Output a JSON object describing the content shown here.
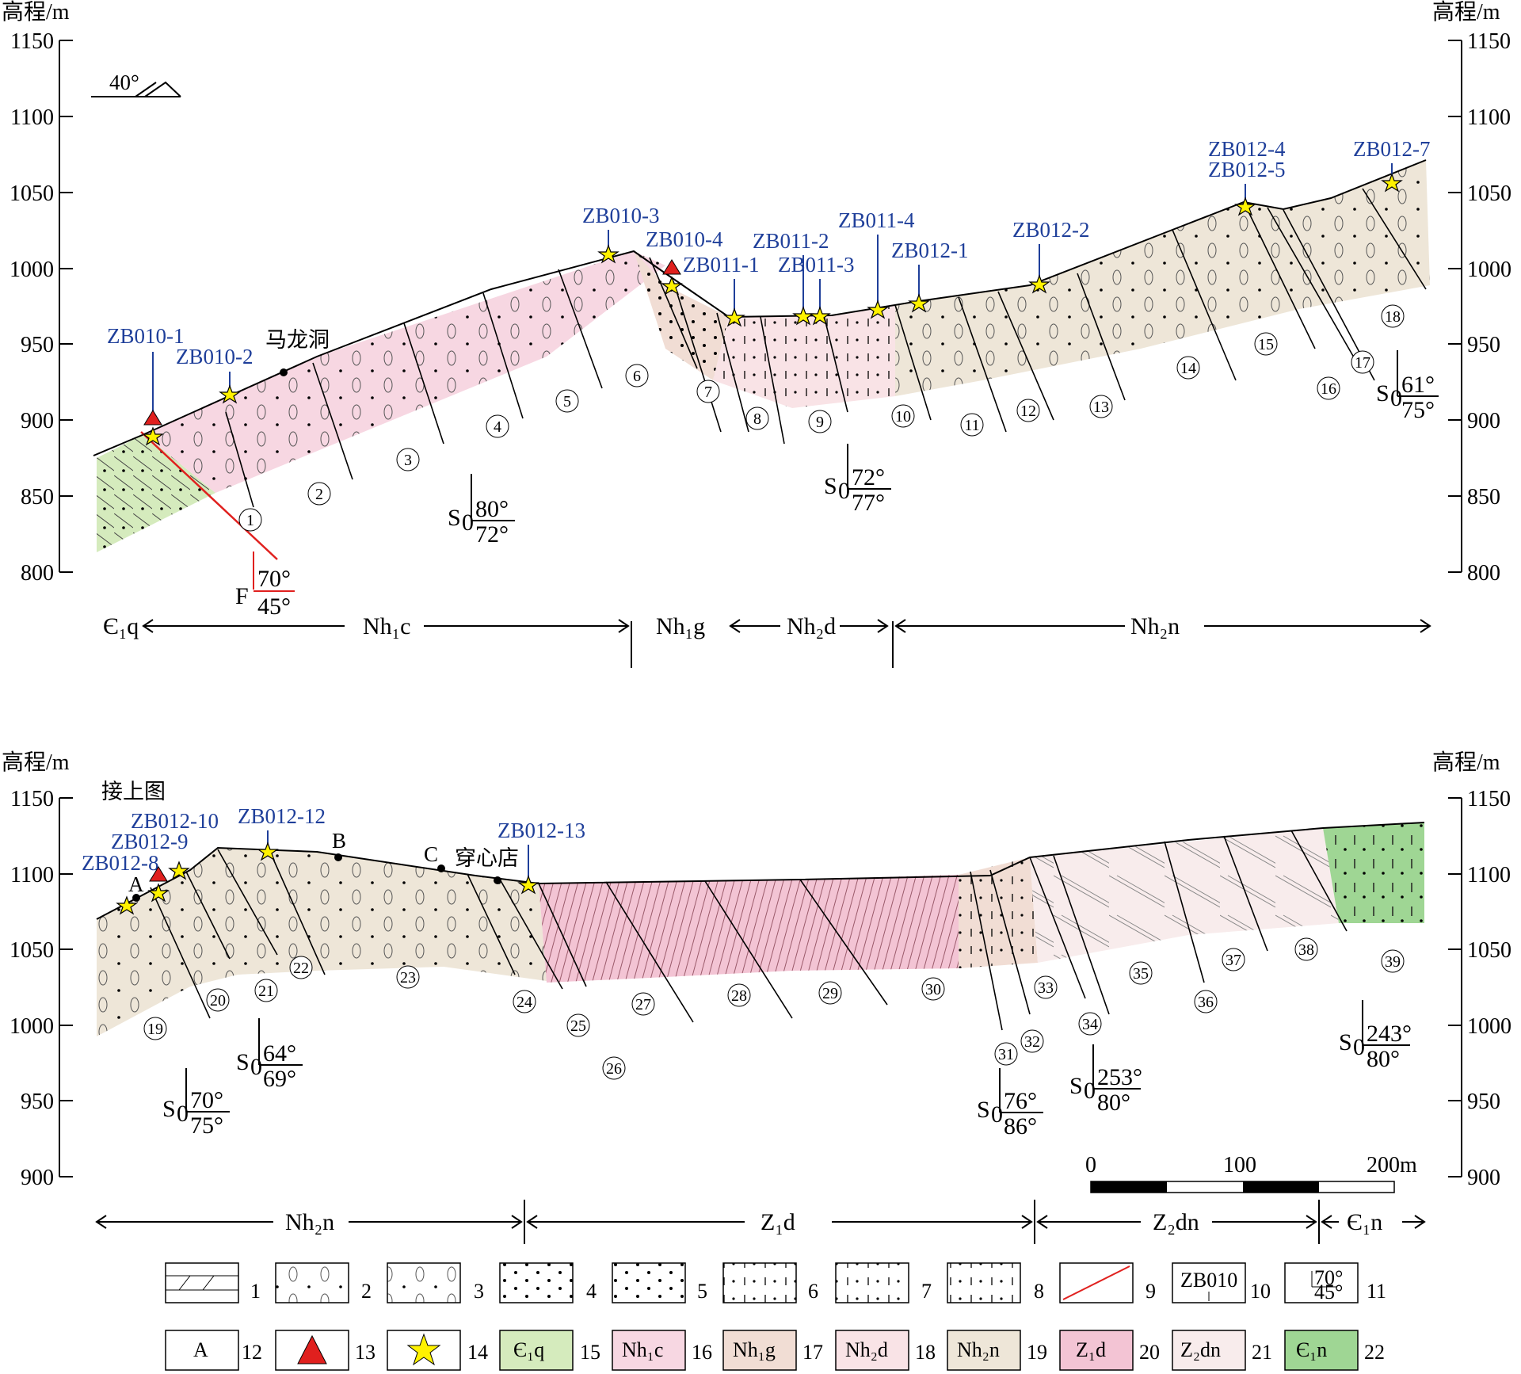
{
  "axis": {
    "title": "高程/m",
    "top_ticks": [
      "1150",
      "1100",
      "1050",
      "1000",
      "950",
      "900",
      "850",
      "800"
    ],
    "bottom_ticks": [
      "1150",
      "1100",
      "1050",
      "1000",
      "950",
      "900"
    ]
  },
  "dip_symbol": {
    "angle": "40°"
  },
  "top_section": {
    "place_label": "马龙洞",
    "samples": [
      "ZB010-1",
      "ZB010-2",
      "ZB010-3",
      "ZB010-4",
      "ZB011-1",
      "ZB011-2",
      "ZB011-3",
      "ZB011-4",
      "ZB012-1",
      "ZB012-2",
      "ZB012-4",
      "ZB012-5",
      "ZB012-7"
    ],
    "layers": [
      "1",
      "2",
      "3",
      "4",
      "5",
      "6",
      "7",
      "8",
      "9",
      "10",
      "11",
      "12",
      "13",
      "14",
      "15",
      "16",
      "17",
      "18"
    ],
    "attitudes": [
      {
        "sym": "S",
        "sub": "0",
        "a": "80°",
        "b": "72°"
      },
      {
        "sym": "S",
        "sub": "0",
        "a": "72°",
        "b": "77°"
      },
      {
        "sym": "S",
        "sub": "0",
        "a": "61°",
        "b": "75°"
      }
    ],
    "fault": {
      "sym": "F",
      "a": "70°",
      "b": "45°"
    },
    "formations": [
      "Є₁q",
      "Nh₁c",
      "Nh₁g",
      "Nh₂d",
      "Nh₂n"
    ]
  },
  "bottom_section": {
    "continue_label": "接上图",
    "place_label": "穿心店",
    "points": [
      "A",
      "B",
      "C"
    ],
    "samples": [
      "ZB012-8",
      "ZB012-9",
      "ZB012-10",
      "ZB012-12",
      "ZB012-13"
    ],
    "layers": [
      "19",
      "20",
      "21",
      "22",
      "23",
      "24",
      "25",
      "26",
      "27",
      "28",
      "29",
      "30",
      "31",
      "32",
      "33",
      "34",
      "35",
      "36",
      "37",
      "38",
      "39"
    ],
    "attitudes": [
      {
        "sym": "S",
        "sub": "0",
        "a": "70°",
        "b": "75°"
      },
      {
        "sym": "S",
        "sub": "0",
        "a": "64°",
        "b": "69°"
      },
      {
        "sym": "S",
        "sub": "0",
        "a": "76°",
        "b": "86°"
      },
      {
        "sym": "S",
        "sub": "0",
        "a": "253°",
        "b": "80°"
      },
      {
        "sym": "S",
        "sub": "0",
        "a": "243°",
        "b": "80°"
      }
    ],
    "formations": [
      "Nh₂n",
      "Z₁d",
      "Z₂dn",
      "Є₁n"
    ],
    "scale": {
      "zero": "0",
      "mid": "100",
      "end": "200m"
    }
  },
  "legend": {
    "numbers": [
      "1",
      "2",
      "3",
      "4",
      "5",
      "6",
      "7",
      "8",
      "9",
      "10",
      "11",
      "12",
      "13",
      "14",
      "15",
      "16",
      "17",
      "18",
      "19",
      "20",
      "21",
      "22"
    ],
    "sample_box": "ZB010",
    "att_box": {
      "a": "70°",
      "b": "45°"
    },
    "point_box": "A",
    "unit_boxes": [
      "Є₁q",
      "Nh₁c",
      "Nh₁g",
      "Nh₂d",
      "Nh₂n",
      "Z₁d",
      "Z₂dn",
      "Є₁n"
    ]
  },
  "colors": {
    "Nh1c": "#f7d7e2",
    "Nh1g": "#f1ddd4",
    "Nh2d": "#f9e3e6",
    "Nh2n": "#eee6d8",
    "Z1d": "#f3c4d4",
    "Z2dn": "#f8ecec",
    "E1q": "#d5ebbd",
    "E1n": "#9fd694",
    "sample_text": "#1f3f9a",
    "fault": "#e0201e",
    "star": "#fff200",
    "triangle": "#e0201e"
  }
}
